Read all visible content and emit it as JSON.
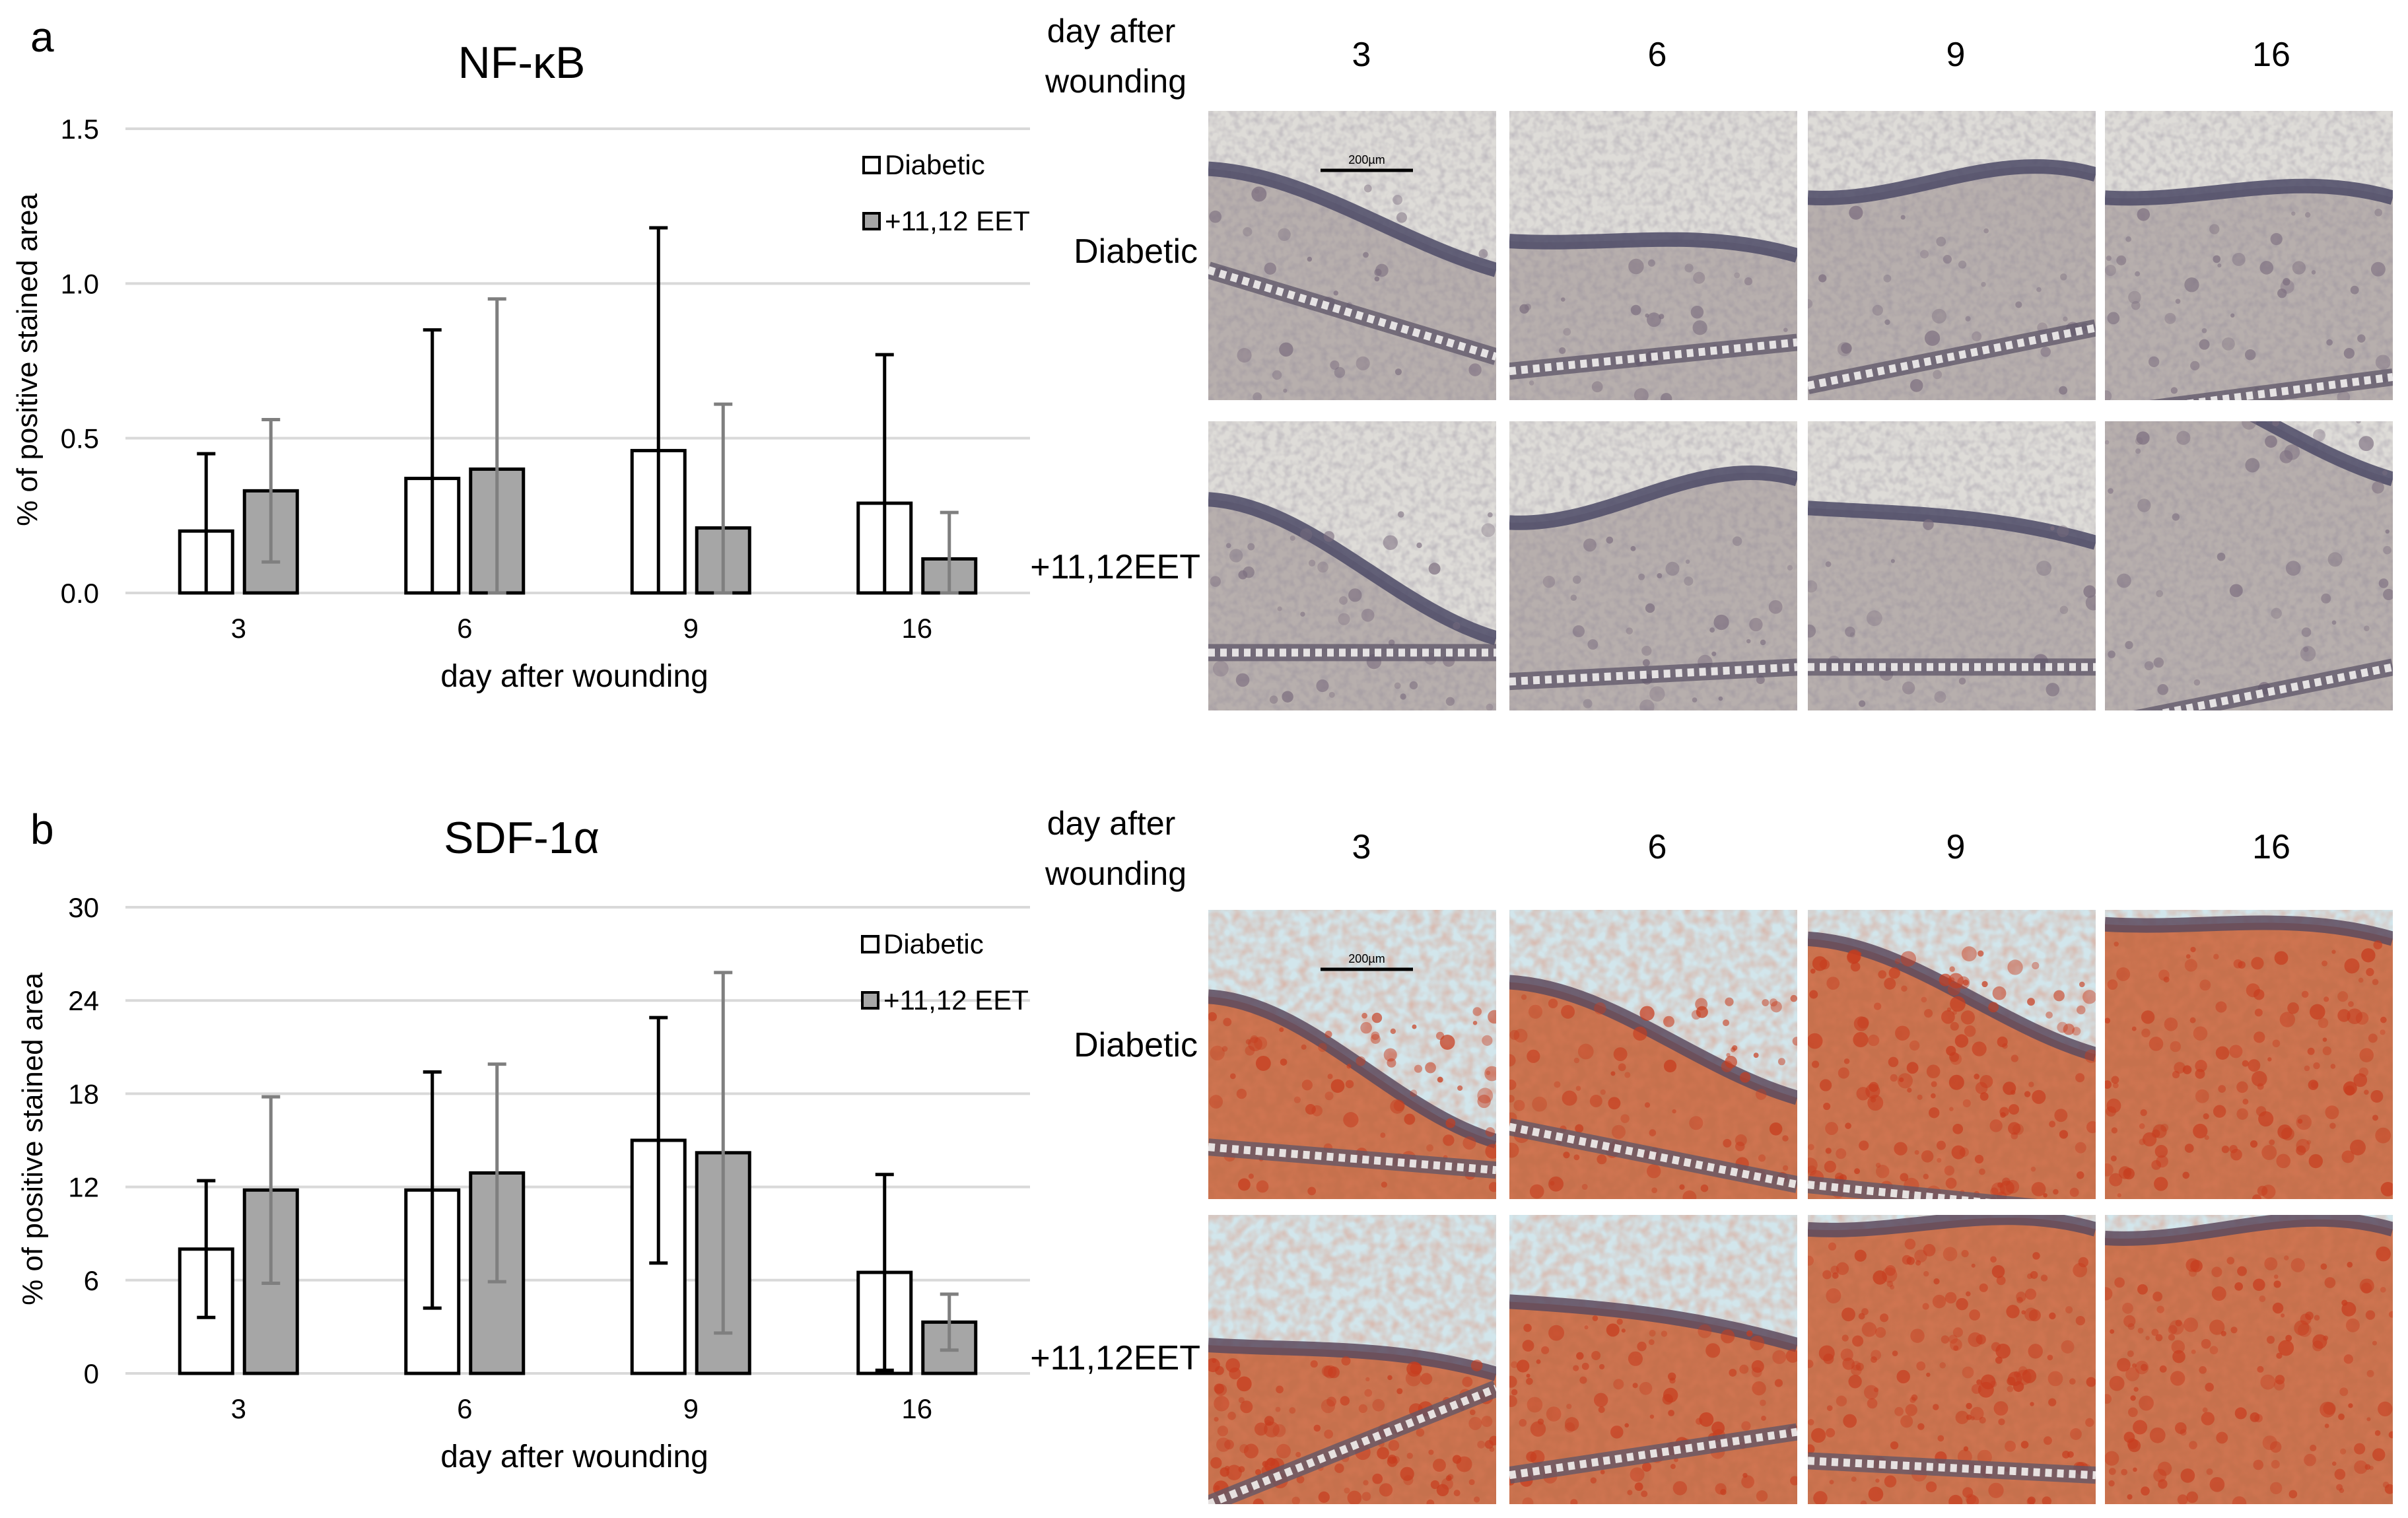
{
  "panels": [
    {
      "letter": "a",
      "micro_header": "day after wounding",
      "micro_columns": [
        "3",
        "6",
        "9",
        "16"
      ],
      "micro_rows": [
        "Diabetic",
        "+11,12EET"
      ],
      "scale_bar": "200µm",
      "chart": {
        "type": "bar",
        "title": "NF-κB",
        "xlabel": "day after wounding",
        "ylabel": "% of positive stained area",
        "categories": [
          "3",
          "6",
          "9",
          "16"
        ],
        "ylim": [
          0,
          1.5
        ],
        "yticks": [
          "0.0",
          "0.5",
          "1.0",
          "1.5"
        ],
        "ytick_values": [
          0,
          0.5,
          1.0,
          1.5
        ],
        "grid": true,
        "legend_position": "top-right",
        "series": [
          {
            "name": "Diabetic",
            "values": [
              0.2,
              0.37,
              0.46,
              0.29
            ],
            "errors": [
              0.25,
              0.48,
              0.72,
              0.48
            ],
            "fill": "#ffffff",
            "err_color": "#000000"
          },
          {
            "name": "+11,12 EET",
            "values": [
              0.33,
              0.4,
              0.21,
              0.11
            ],
            "errors": [
              0.23,
              0.55,
              0.4,
              0.15
            ],
            "fill": "#a6a6a6",
            "err_color": "#7f7f7f"
          }
        ]
      }
    },
    {
      "letter": "b",
      "micro_header": "day after wounding",
      "micro_columns": [
        "3",
        "6",
        "9",
        "16"
      ],
      "micro_rows": [
        "Diabetic",
        "+11,12EET"
      ],
      "scale_bar": "200µm",
      "chart": {
        "type": "bar",
        "title": "SDF-1α",
        "xlabel": "day after wounding",
        "ylabel": "% of positive stained area",
        "categories": [
          "3",
          "6",
          "9",
          "16"
        ],
        "ylim": [
          0,
          30
        ],
        "yticks": [
          "0",
          "6",
          "12",
          "18",
          "24",
          "30"
        ],
        "ytick_values": [
          0,
          6,
          12,
          18,
          24,
          30
        ],
        "grid": true,
        "legend_position": "top-right",
        "series": [
          {
            "name": "Diabetic",
            "values": [
              8.0,
              11.8,
              15.0,
              6.5
            ],
            "errors": [
              4.4,
              7.6,
              7.9,
              6.3
            ],
            "fill": "#ffffff",
            "err_color": "#000000"
          },
          {
            "name": "+11,12 EET",
            "values": [
              11.8,
              12.9,
              14.2,
              3.3
            ],
            "errors": [
              6.0,
              7.0,
              11.6,
              1.8
            ],
            "fill": "#a6a6a6",
            "err_color": "#7f7f7f"
          }
        ]
      }
    }
  ],
  "colors": {
    "gridline": "#d9d9d9",
    "axis": "#d9d9d9",
    "nfkb_background": "#dedcd8",
    "nfkb_epidermis": "#4c4a66",
    "nfkb_dermis": "#b3aaa8",
    "sdf_background": "#d2e6ec",
    "sdf_epidermis": "#5c4a5e",
    "sdf_dermis": "#c4643c",
    "sdf_stain": "#c73c1e"
  }
}
